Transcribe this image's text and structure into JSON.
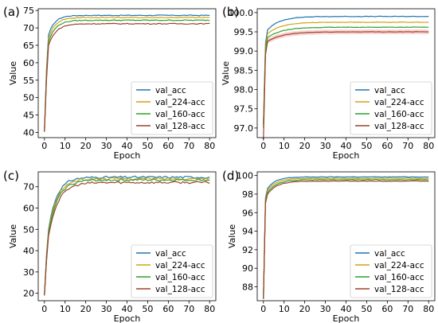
{
  "colors": {
    "val_acc": "#1f77b4",
    "val_224": "#d4a017",
    "val_160": "#2ca02c",
    "val_128": "#a0402a",
    "band": "#f4b6b6"
  },
  "chart_data": [
    {
      "type": "line",
      "panel_label": "(a)",
      "xlabel": "Epoch",
      "ylabel": "Value",
      "xlim": [
        -3,
        83
      ],
      "ylim": [
        38.5,
        75.5
      ],
      "xticks": [
        0,
        10,
        20,
        30,
        40,
        50,
        60,
        70,
        80
      ],
      "yticks": [
        40,
        45,
        50,
        55,
        60,
        65,
        70,
        75
      ],
      "legend_position": "lower-right",
      "grid": false,
      "series": [
        {
          "name": "val_acc",
          "y0": 40.2,
          "y1": 58.0,
          "y2": 68.0,
          "plateau": 73.6,
          "tau": 3.0
        },
        {
          "name": "val_224-acc",
          "y0": 40.2,
          "y1": 57.0,
          "y2": 67.0,
          "plateau": 73.0,
          "tau": 3.2
        },
        {
          "name": "val_160-acc",
          "y0": 40.2,
          "y1": 56.0,
          "y2": 66.0,
          "plateau": 72.2,
          "tau": 3.4
        },
        {
          "name": "val_128-acc",
          "y0": 40.2,
          "y1": 55.0,
          "y2": 65.0,
          "plateau": 71.2,
          "tau": 3.6
        }
      ]
    },
    {
      "type": "line",
      "panel_label": "(b)",
      "xlabel": "Epoch",
      "ylabel": "Value",
      "xlim": [
        -3,
        83
      ],
      "ylim": [
        96.75,
        100.1
      ],
      "xticks": [
        0,
        10,
        20,
        30,
        40,
        50,
        60,
        70,
        80
      ],
      "yticks": [
        97.0,
        97.5,
        98.0,
        98.5,
        99.0,
        99.5,
        100.0
      ],
      "legend_position": "lower-right",
      "grid": false,
      "series": [
        {
          "name": "val_acc",
          "y0": 97.1,
          "y1": 99.2,
          "y2": 99.55,
          "plateau": 99.9,
          "tau": 6.0
        },
        {
          "name": "val_224-acc",
          "y0": 97.1,
          "y1": 99.1,
          "y2": 99.45,
          "plateau": 99.75,
          "tau": 6.5
        },
        {
          "name": "val_160-acc",
          "y0": 97.0,
          "y1": 99.0,
          "y2": 99.35,
          "plateau": 99.62,
          "tau": 7.0
        },
        {
          "name": "val_128-acc",
          "y0": 96.7,
          "y1": 98.9,
          "y2": 99.25,
          "plateau": 99.5,
          "tau": 7.5
        }
      ]
    },
    {
      "type": "line",
      "panel_label": "(c)",
      "xlabel": "Epoch",
      "ylabel": "Value",
      "xlim": [
        -3,
        83
      ],
      "ylim": [
        16.5,
        77
      ],
      "xticks": [
        0,
        10,
        20,
        30,
        40,
        50,
        60,
        70,
        80
      ],
      "yticks": [
        20,
        30,
        40,
        50,
        60,
        70
      ],
      "legend_position": "lower-right",
      "grid": false,
      "series": [
        {
          "name": "val_acc",
          "y0": 19.0,
          "y1": 38.0,
          "y2": 50.0,
          "plateau": 74.5,
          "tau": 4.0
        },
        {
          "name": "val_224-acc",
          "y0": 19.0,
          "y1": 37.0,
          "y2": 49.0,
          "plateau": 73.8,
          "tau": 4.2
        },
        {
          "name": "val_160-acc",
          "y0": 19.0,
          "y1": 36.0,
          "y2": 48.0,
          "plateau": 73.2,
          "tau": 4.4
        },
        {
          "name": "val_128-acc",
          "y0": 19.0,
          "y1": 35.0,
          "y2": 47.0,
          "plateau": 72.0,
          "tau": 4.6
        }
      ]
    },
    {
      "type": "line",
      "panel_label": "(d)",
      "xlabel": "Epoch",
      "ylabel": "Value",
      "xlim": [
        -3,
        83
      ],
      "ylim": [
        86.5,
        100.4
      ],
      "xticks": [
        0,
        10,
        20,
        30,
        40,
        50,
        60,
        70,
        80
      ],
      "yticks": [
        88,
        90,
        92,
        94,
        96,
        98,
        100
      ],
      "legend_position": "lower-right",
      "grid": false,
      "series": [
        {
          "name": "val_acc",
          "y0": 86.7,
          "y1": 97.6,
          "y2": 98.6,
          "plateau": 99.85,
          "tau": 4.0
        },
        {
          "name": "val_224-acc",
          "y0": 86.7,
          "y1": 97.4,
          "y2": 98.4,
          "plateau": 99.7,
          "tau": 4.2
        },
        {
          "name": "val_160-acc",
          "y0": 86.7,
          "y1": 97.2,
          "y2": 98.2,
          "plateau": 99.55,
          "tau": 4.4
        },
        {
          "name": "val_128-acc",
          "y0": 86.7,
          "y1": 97.0,
          "y2": 98.0,
          "plateau": 99.4,
          "tau": 4.6
        }
      ]
    }
  ]
}
